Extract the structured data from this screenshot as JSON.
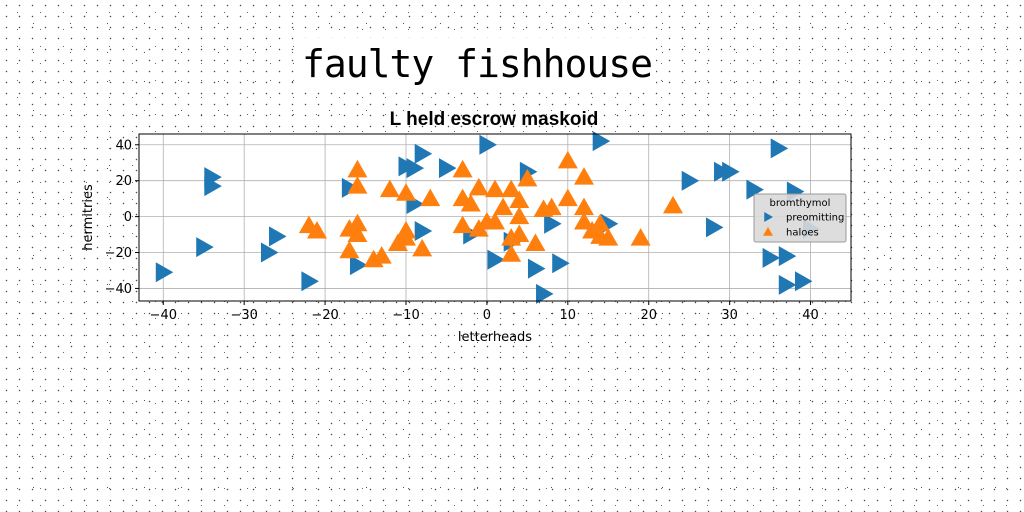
{
  "headline": "faulty fishhouse",
  "chart_data": {
    "type": "scatter",
    "title": "L held escrow maskoid",
    "xlabel": "letterheads",
    "ylabel": "hermitries",
    "xlim": [
      -43,
      45
    ],
    "ylim": [
      -47,
      46
    ],
    "xticks": [
      -40,
      -30,
      -20,
      -10,
      0,
      10,
      20,
      30,
      40
    ],
    "yticks": [
      -40,
      -20,
      0,
      20,
      40
    ],
    "grid": true,
    "legend": {
      "title": "bromthymol",
      "placement": "right"
    },
    "series": [
      {
        "name": "preomitting",
        "color": "#1f77b4",
        "marker": "triangle-right",
        "points": [
          [
            0,
            40
          ],
          [
            14,
            42
          ],
          [
            -8,
            35
          ],
          [
            -10,
            28
          ],
          [
            -9,
            27
          ],
          [
            -5,
            27
          ],
          [
            5,
            25
          ],
          [
            -34,
            22
          ],
          [
            -34,
            17
          ],
          [
            -17,
            16
          ],
          [
            25,
            20
          ],
          [
            29,
            25
          ],
          [
            30,
            25
          ],
          [
            33,
            15
          ],
          [
            36,
            38
          ],
          [
            38,
            14
          ],
          [
            -9,
            7
          ],
          [
            -35,
            -17
          ],
          [
            -26,
            -11
          ],
          [
            -27,
            -20
          ],
          [
            -22,
            -36
          ],
          [
            -40,
            -31
          ],
          [
            -16,
            -27
          ],
          [
            -8,
            -8
          ],
          [
            -2,
            -10
          ],
          [
            1,
            -24
          ],
          [
            6,
            -29
          ],
          [
            9,
            -26
          ],
          [
            7,
            -43
          ],
          [
            15,
            -4
          ],
          [
            8,
            -4
          ],
          [
            28,
            -6
          ],
          [
            35,
            -23
          ],
          [
            37,
            -22
          ],
          [
            37,
            -38
          ],
          [
            39,
            -36
          ],
          [
            40,
            -7
          ],
          [
            3,
            -14
          ]
        ]
      },
      {
        "name": "haloes",
        "color": "#ff7f0e",
        "marker": "triangle-up",
        "points": [
          [
            10,
            31
          ],
          [
            -3,
            26
          ],
          [
            -16,
            26
          ],
          [
            12,
            22
          ],
          [
            5,
            21
          ],
          [
            -16,
            17
          ],
          [
            -12,
            15
          ],
          [
            -1,
            16
          ],
          [
            1,
            15
          ],
          [
            3,
            15
          ],
          [
            -10,
            13
          ],
          [
            -7,
            10
          ],
          [
            -3,
            10
          ],
          [
            4,
            9
          ],
          [
            8,
            5
          ],
          [
            7,
            4
          ],
          [
            2,
            5
          ],
          [
            10,
            10
          ],
          [
            12,
            5
          ],
          [
            23,
            6
          ],
          [
            -22,
            -5
          ],
          [
            -21,
            -8
          ],
          [
            -17,
            -7
          ],
          [
            -16,
            -4
          ],
          [
            -3,
            -5
          ],
          [
            -1,
            -7
          ],
          [
            0,
            -3
          ],
          [
            1,
            -3
          ],
          [
            -10,
            -8
          ],
          [
            -10,
            -12
          ],
          [
            -11,
            -15
          ],
          [
            -8,
            -18
          ],
          [
            -13,
            -22
          ],
          [
            -14,
            -24
          ],
          [
            -17,
            -19
          ],
          [
            -16,
            -10
          ],
          [
            3,
            -12
          ],
          [
            4,
            -10
          ],
          [
            6,
            -15
          ],
          [
            3,
            -21
          ],
          [
            12,
            -3
          ],
          [
            14,
            -4
          ],
          [
            13,
            -8
          ],
          [
            15,
            -12
          ],
          [
            14,
            -11
          ],
          [
            19,
            -12
          ],
          [
            -2,
            7
          ],
          [
            4,
            0
          ]
        ]
      }
    ]
  }
}
